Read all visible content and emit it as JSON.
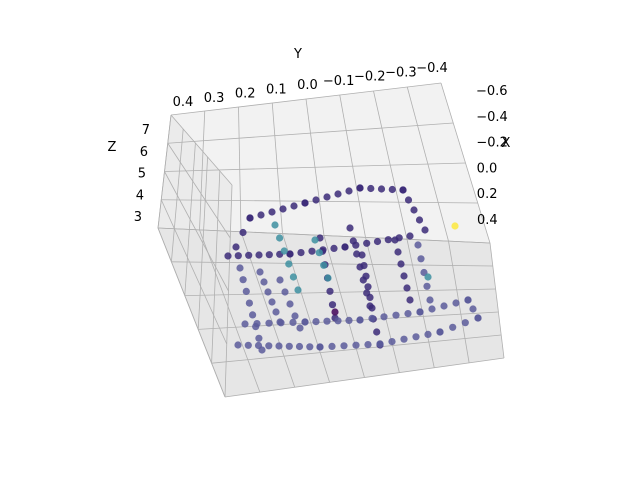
{
  "chart_data": {
    "type": "scatter",
    "projection": "3d",
    "xlabel": "X",
    "ylabel": "Y",
    "zlabel": "Z",
    "x_ticks": [
      "−0.6",
      "−0.4",
      "−0.2",
      "0.0",
      "0.2",
      "0.4"
    ],
    "y_ticks": [
      "0.4",
      "0.3",
      "0.2",
      "0.1",
      "0.0",
      "−0.1",
      "−0.2",
      "−0.3",
      "−0.4"
    ],
    "z_ticks": [
      "7",
      "6",
      "5",
      "4",
      "3"
    ],
    "grid": true,
    "colormap": "viridis",
    "pane_color": "#f2f2f2",
    "grid_color": "#b0b0b0",
    "point_color_dark": "#3b2a78",
    "point_color_mid": "#5b5b9a",
    "point_color_teal": "#3d8fa0",
    "point_color_yellow": "#fde725"
  }
}
